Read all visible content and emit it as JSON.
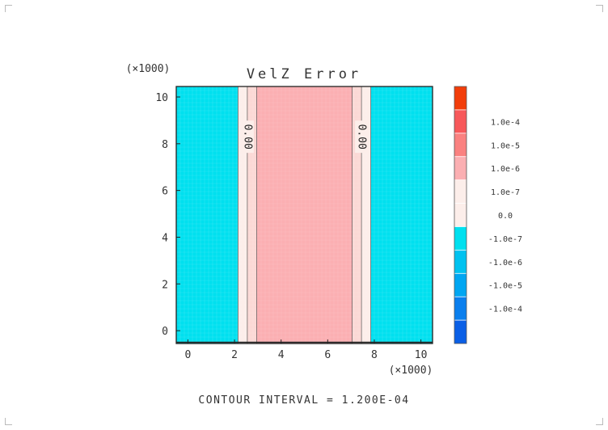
{
  "chart_data": {
    "type": "heatmap",
    "title": "VelZ Error",
    "x_multiplier": "(×1000)",
    "y_multiplier": "(×1000)",
    "xlim": [
      -0.5,
      10.5
    ],
    "ylim": [
      -0.55,
      10.45
    ],
    "x_ticks": [
      0,
      2,
      4,
      6,
      8,
      10
    ],
    "y_ticks": [
      0,
      2,
      4,
      6,
      8,
      10
    ],
    "bands": [
      {
        "x0": -0.5,
        "x1": 2.15,
        "level": "-1.0e-6",
        "color": "#00e0ef"
      },
      {
        "x0": 2.15,
        "x1": 2.55,
        "level": "0.0",
        "color": "#fceeea"
      },
      {
        "x0": 2.55,
        "x1": 2.95,
        "level": "1.0e-7",
        "color": "#fbd8d5"
      },
      {
        "x0": 2.95,
        "x1": 7.05,
        "level": "1.0e-6",
        "color": "#fbafb2"
      },
      {
        "x0": 7.05,
        "x1": 7.45,
        "level": "1.0e-7",
        "color": "#fbd8d5"
      },
      {
        "x0": 7.45,
        "x1": 7.85,
        "level": "0.0",
        "color": "#fceeea"
      },
      {
        "x0": 7.85,
        "x1": 10.5,
        "level": "-1.0e-6",
        "color": "#00e0ef"
      }
    ],
    "contour_labels": [
      {
        "x": 2.55,
        "y": 8.3,
        "text": "0.00"
      },
      {
        "x": 7.45,
        "y": 8.3,
        "text": "0.00"
      }
    ],
    "colorbar": [
      {
        "label": "",
        "color": "#f23d0a"
      },
      {
        "label": "1.0e-4",
        "color": "#f7585a"
      },
      {
        "label": "1.0e-5",
        "color": "#fa8180"
      },
      {
        "label": "1.0e-6",
        "color": "#fbafb2"
      },
      {
        "label": "1.0e-7",
        "color": "#fceeea"
      },
      {
        "label": "0.0",
        "color": "#fceeea"
      },
      {
        "label": "-1.0e-7",
        "color": "#00e0ef"
      },
      {
        "label": "-1.0e-6",
        "color": "#00c2f0"
      },
      {
        "label": "-1.0e-5",
        "color": "#00a6f2"
      },
      {
        "label": "-1.0e-4",
        "color": "#0a7fee"
      },
      {
        "label": "",
        "color": "#0a5fe6"
      }
    ],
    "footer": "CONTOUR INTERVAL = 1.200E-04"
  }
}
